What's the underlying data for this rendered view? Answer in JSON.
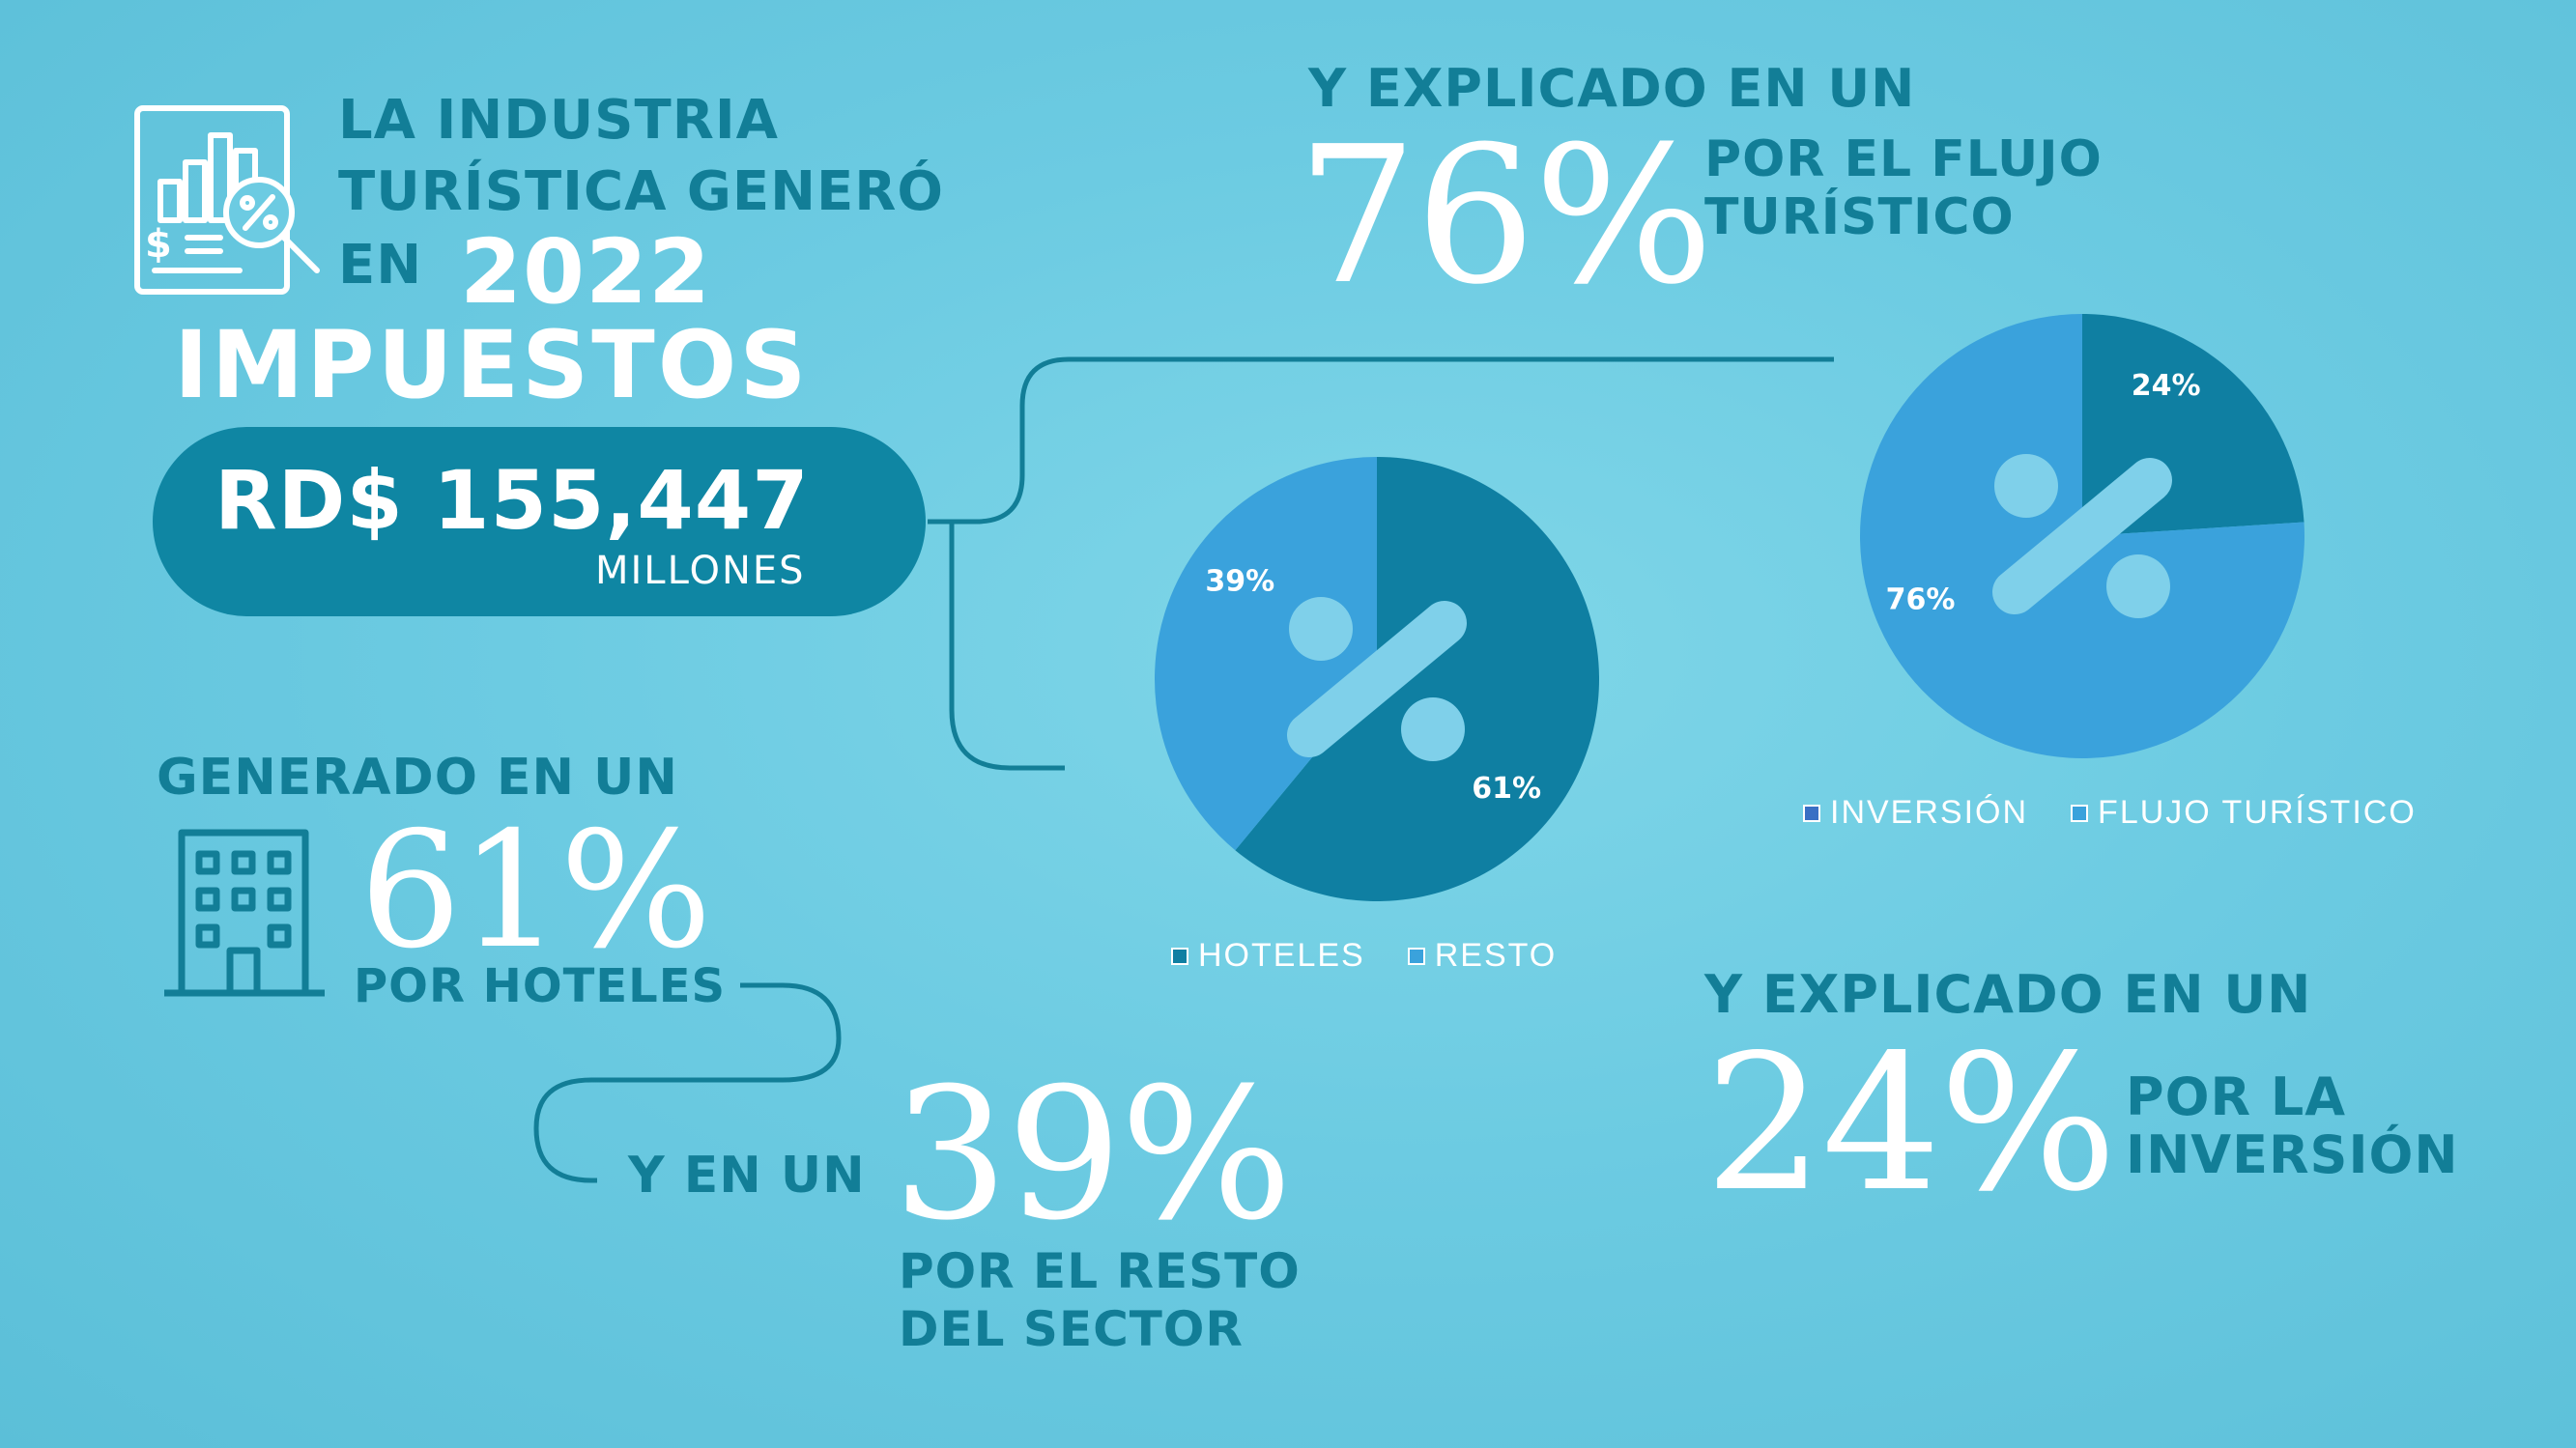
{
  "title": {
    "line1": "LA INDUSTRIA",
    "line2": "TURÍSTICA GENERÓ",
    "line3_prefix": "EN",
    "year": "2022",
    "impuestos": "IMPUESTOS",
    "amount": "RD$ 155,447",
    "unit": "MILLONES"
  },
  "callouts": {
    "flujo_intro": "Y EXPLICADO EN UN",
    "flujo_pct": "76%",
    "flujo_line1": "POR EL FLUJO",
    "flujo_line2": "TURÍSTICO",
    "hoteles_intro": "GENERADO EN UN",
    "hoteles_pct": "61%",
    "hoteles_text": "POR HOTELES",
    "resto_intro": "Y EN UN",
    "resto_pct": "39%",
    "resto_line1": "POR EL RESTO",
    "resto_line2": "DEL SECTOR",
    "inversion_intro": "Y EXPLICADO EN UN",
    "inversion_pct": "24%",
    "inversion_line1": "POR LA",
    "inversion_line2": "INVERSIÓN"
  },
  "colors": {
    "dark_slice": "#0f7fa2",
    "light_slice": "#3aa2dc",
    "accent_text": "#127e97",
    "connector": "#127e97",
    "percent_symbol": "#7fd0ea"
  },
  "icons": [
    "tax-report-icon",
    "hotel-building-icon"
  ],
  "chart_data": [
    {
      "type": "pie",
      "slices": [
        {
          "label": "HOTELES",
          "value": 61,
          "data_label": "61%",
          "color": "#0f7fa2"
        },
        {
          "label": "RESTO",
          "value": 39,
          "data_label": "39%",
          "color": "#3aa2dc"
        }
      ],
      "legend": [
        "HOTELES",
        "RESTO"
      ],
      "legend_position": "bottom"
    },
    {
      "type": "pie",
      "slices": [
        {
          "label": "INVERSIÓN",
          "value": 24,
          "data_label": "24%",
          "color": "#0f7fa2"
        },
        {
          "label": "FLUJO TURÍSTICO",
          "value": 76,
          "data_label": "76%",
          "color": "#3aa2dc"
        }
      ],
      "legend": [
        "INVERSIÓN",
        "FLUJO TURÍSTICO"
      ],
      "legend_position": "bottom"
    }
  ]
}
